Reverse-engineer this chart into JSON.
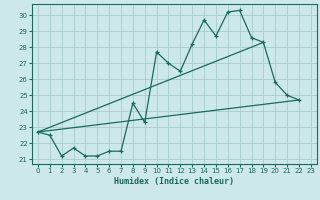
{
  "xlabel": "Humidex (Indice chaleur)",
  "bg_color": "#cce8e8",
  "line_color": "#1a6b5a",
  "grid_color": "#aacccc",
  "xlim": [
    -0.5,
    23.5
  ],
  "ylim": [
    20.7,
    30.7
  ],
  "yticks": [
    21,
    22,
    23,
    24,
    25,
    26,
    27,
    28,
    29,
    30
  ],
  "xticks": [
    0,
    1,
    2,
    3,
    4,
    5,
    6,
    7,
    8,
    9,
    10,
    11,
    12,
    13,
    14,
    15,
    16,
    17,
    18,
    19,
    20,
    21,
    22,
    23
  ],
  "line1_x": [
    0,
    1,
    2,
    3,
    4,
    5,
    6,
    7,
    8,
    9,
    10,
    11,
    12,
    13,
    14,
    15,
    16,
    17,
    18,
    19,
    20,
    21,
    22
  ],
  "line1_y": [
    22.7,
    22.5,
    21.2,
    21.7,
    21.2,
    21.2,
    21.5,
    21.5,
    24.5,
    23.3,
    27.7,
    27.0,
    26.5,
    28.2,
    29.7,
    28.7,
    30.2,
    30.3,
    28.6,
    28.3,
    25.8,
    25.0,
    24.7
  ],
  "line2_x": [
    0,
    22
  ],
  "line2_y": [
    22.7,
    24.7
  ],
  "line3_x": [
    0,
    19
  ],
  "line3_y": [
    22.7,
    28.3
  ]
}
